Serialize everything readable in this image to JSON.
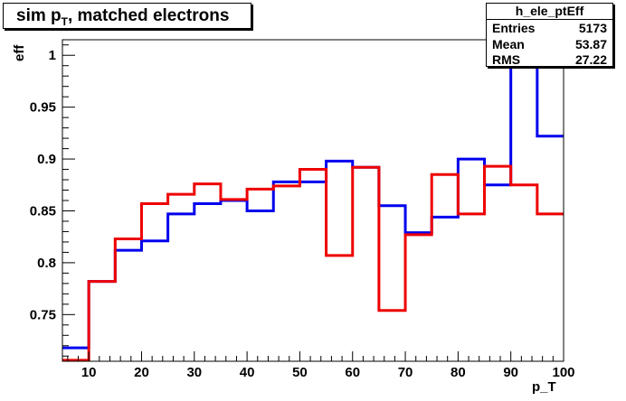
{
  "title": {
    "main": "sim p",
    "sub": "T",
    "rest": ", matched electrons"
  },
  "stats": {
    "name": "h_ele_ptEff",
    "rows": [
      {
        "key": "Entries",
        "value": "5173"
      },
      {
        "key": "Mean",
        "value": "53.87"
      },
      {
        "key": "RMS",
        "value": "27.22"
      }
    ]
  },
  "chart_data": {
    "type": "line",
    "style": "histogram-step",
    "xlabel": "p_T",
    "ylabel": "eff",
    "xlim": [
      5,
      100
    ],
    "ylim": [
      0.705,
      1.015
    ],
    "x_ticks": [
      10,
      20,
      30,
      40,
      50,
      60,
      70,
      80,
      90,
      100
    ],
    "y_ticks": [
      0.75,
      0.8,
      0.85,
      0.9,
      0.95,
      1
    ],
    "bin_edges": [
      5,
      10,
      15,
      20,
      25,
      30,
      35,
      40,
      45,
      50,
      55,
      60,
      65,
      70,
      75,
      80,
      85,
      90,
      95,
      100
    ],
    "series": [
      {
        "color": "#0000ee",
        "values": [
          0.718,
          0.782,
          0.812,
          0.821,
          0.847,
          0.857,
          0.86,
          0.85,
          0.878,
          0.878,
          0.898,
          0.892,
          0.855,
          0.829,
          0.844,
          0.9,
          0.875,
          1.015,
          0.922
        ]
      },
      {
        "color": "#ee0000",
        "values": [
          0.706,
          0.782,
          0.823,
          0.857,
          0.866,
          0.876,
          0.861,
          0.871,
          0.874,
          0.89,
          0.807,
          0.892,
          0.754,
          0.827,
          0.885,
          0.847,
          0.893,
          0.875,
          0.847
        ]
      }
    ]
  }
}
